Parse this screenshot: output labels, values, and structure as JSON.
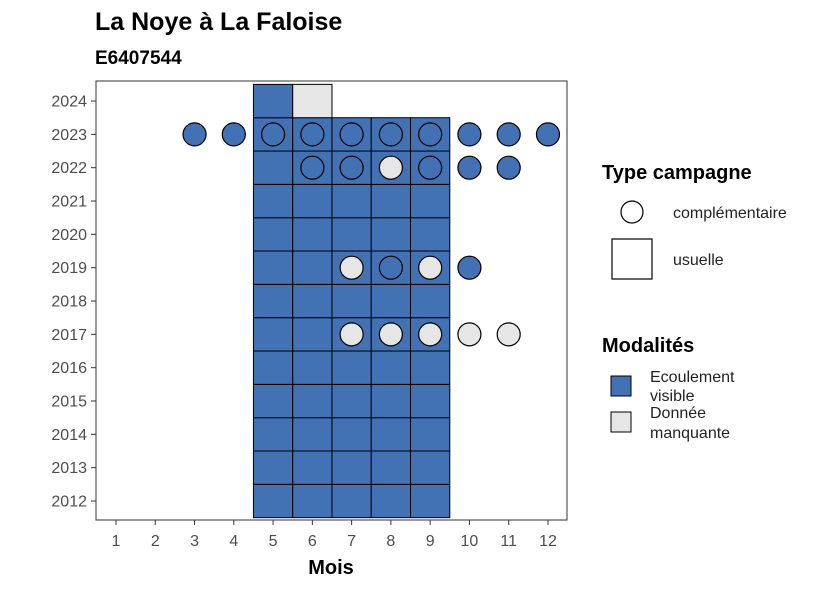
{
  "chart_data": {
    "type": "heatmap",
    "title": "La Noye à La Faloise",
    "subtitle": "E6407544",
    "xlabel": "Mois",
    "ylabel": "",
    "x_ticks": [
      1,
      2,
      3,
      4,
      5,
      6,
      7,
      8,
      9,
      10,
      11,
      12
    ],
    "y_ticks": [
      2012,
      2013,
      2014,
      2015,
      2016,
      2017,
      2018,
      2019,
      2020,
      2021,
      2022,
      2023,
      2024
    ],
    "colors": {
      "ecoulement": "#4372b4",
      "manquante": "#e6e6e6",
      "stroke": "#000000"
    },
    "usuelle": [
      {
        "year": 2012,
        "month": 5,
        "modalite": "ecoulement"
      },
      {
        "year": 2012,
        "month": 6,
        "modalite": "ecoulement"
      },
      {
        "year": 2012,
        "month": 7,
        "modalite": "ecoulement"
      },
      {
        "year": 2012,
        "month": 8,
        "modalite": "ecoulement"
      },
      {
        "year": 2012,
        "month": 9,
        "modalite": "ecoulement"
      },
      {
        "year": 2013,
        "month": 5,
        "modalite": "ecoulement"
      },
      {
        "year": 2013,
        "month": 6,
        "modalite": "ecoulement"
      },
      {
        "year": 2013,
        "month": 7,
        "modalite": "ecoulement"
      },
      {
        "year": 2013,
        "month": 8,
        "modalite": "ecoulement"
      },
      {
        "year": 2013,
        "month": 9,
        "modalite": "ecoulement"
      },
      {
        "year": 2014,
        "month": 5,
        "modalite": "ecoulement"
      },
      {
        "year": 2014,
        "month": 6,
        "modalite": "ecoulement"
      },
      {
        "year": 2014,
        "month": 7,
        "modalite": "ecoulement"
      },
      {
        "year": 2014,
        "month": 8,
        "modalite": "ecoulement"
      },
      {
        "year": 2014,
        "month": 9,
        "modalite": "ecoulement"
      },
      {
        "year": 2015,
        "month": 5,
        "modalite": "ecoulement"
      },
      {
        "year": 2015,
        "month": 6,
        "modalite": "ecoulement"
      },
      {
        "year": 2015,
        "month": 7,
        "modalite": "ecoulement"
      },
      {
        "year": 2015,
        "month": 8,
        "modalite": "ecoulement"
      },
      {
        "year": 2015,
        "month": 9,
        "modalite": "ecoulement"
      },
      {
        "year": 2016,
        "month": 5,
        "modalite": "ecoulement"
      },
      {
        "year": 2016,
        "month": 6,
        "modalite": "ecoulement"
      },
      {
        "year": 2016,
        "month": 7,
        "modalite": "ecoulement"
      },
      {
        "year": 2016,
        "month": 8,
        "modalite": "ecoulement"
      },
      {
        "year": 2016,
        "month": 9,
        "modalite": "ecoulement"
      },
      {
        "year": 2017,
        "month": 5,
        "modalite": "ecoulement"
      },
      {
        "year": 2017,
        "month": 6,
        "modalite": "ecoulement"
      },
      {
        "year": 2017,
        "month": 7,
        "modalite": "ecoulement"
      },
      {
        "year": 2017,
        "month": 8,
        "modalite": "ecoulement"
      },
      {
        "year": 2017,
        "month": 9,
        "modalite": "ecoulement"
      },
      {
        "year": 2018,
        "month": 5,
        "modalite": "ecoulement"
      },
      {
        "year": 2018,
        "month": 6,
        "modalite": "ecoulement"
      },
      {
        "year": 2018,
        "month": 7,
        "modalite": "ecoulement"
      },
      {
        "year": 2018,
        "month": 8,
        "modalite": "ecoulement"
      },
      {
        "year": 2018,
        "month": 9,
        "modalite": "ecoulement"
      },
      {
        "year": 2019,
        "month": 5,
        "modalite": "ecoulement"
      },
      {
        "year": 2019,
        "month": 6,
        "modalite": "ecoulement"
      },
      {
        "year": 2019,
        "month": 7,
        "modalite": "ecoulement"
      },
      {
        "year": 2019,
        "month": 8,
        "modalite": "ecoulement"
      },
      {
        "year": 2019,
        "month": 9,
        "modalite": "ecoulement"
      },
      {
        "year": 2020,
        "month": 5,
        "modalite": "ecoulement"
      },
      {
        "year": 2020,
        "month": 6,
        "modalite": "ecoulement"
      },
      {
        "year": 2020,
        "month": 7,
        "modalite": "ecoulement"
      },
      {
        "year": 2020,
        "month": 8,
        "modalite": "ecoulement"
      },
      {
        "year": 2020,
        "month": 9,
        "modalite": "ecoulement"
      },
      {
        "year": 2021,
        "month": 5,
        "modalite": "ecoulement"
      },
      {
        "year": 2021,
        "month": 6,
        "modalite": "ecoulement"
      },
      {
        "year": 2021,
        "month": 7,
        "modalite": "ecoulement"
      },
      {
        "year": 2021,
        "month": 8,
        "modalite": "ecoulement"
      },
      {
        "year": 2021,
        "month": 9,
        "modalite": "ecoulement"
      },
      {
        "year": 2022,
        "month": 5,
        "modalite": "ecoulement"
      },
      {
        "year": 2022,
        "month": 6,
        "modalite": "ecoulement"
      },
      {
        "year": 2022,
        "month": 7,
        "modalite": "ecoulement"
      },
      {
        "year": 2022,
        "month": 8,
        "modalite": "ecoulement"
      },
      {
        "year": 2022,
        "month": 9,
        "modalite": "ecoulement"
      },
      {
        "year": 2023,
        "month": 5,
        "modalite": "ecoulement"
      },
      {
        "year": 2023,
        "month": 6,
        "modalite": "ecoulement"
      },
      {
        "year": 2023,
        "month": 7,
        "modalite": "ecoulement"
      },
      {
        "year": 2023,
        "month": 8,
        "modalite": "ecoulement"
      },
      {
        "year": 2023,
        "month": 9,
        "modalite": "ecoulement"
      },
      {
        "year": 2024,
        "month": 5,
        "modalite": "ecoulement"
      },
      {
        "year": 2024,
        "month": 6,
        "modalite": "manquante"
      }
    ],
    "complementaire": [
      {
        "year": 2017,
        "month": 7,
        "modalite": "manquante"
      },
      {
        "year": 2017,
        "month": 8,
        "modalite": "manquante"
      },
      {
        "year": 2017,
        "month": 9,
        "modalite": "manquante"
      },
      {
        "year": 2017,
        "month": 10,
        "modalite": "manquante"
      },
      {
        "year": 2017,
        "month": 11,
        "modalite": "manquante"
      },
      {
        "year": 2019,
        "month": 7,
        "modalite": "manquante"
      },
      {
        "year": 2019,
        "month": 8,
        "modalite": "ecoulement"
      },
      {
        "year": 2019,
        "month": 9,
        "modalite": "manquante"
      },
      {
        "year": 2019,
        "month": 10,
        "modalite": "ecoulement"
      },
      {
        "year": 2022,
        "month": 6,
        "modalite": "ecoulement"
      },
      {
        "year": 2022,
        "month": 7,
        "modalite": "ecoulement"
      },
      {
        "year": 2022,
        "month": 8,
        "modalite": "manquante"
      },
      {
        "year": 2022,
        "month": 9,
        "modalite": "ecoulement"
      },
      {
        "year": 2022,
        "month": 10,
        "modalite": "ecoulement"
      },
      {
        "year": 2022,
        "month": 11,
        "modalite": "ecoulement"
      },
      {
        "year": 2023,
        "month": 3,
        "modalite": "ecoulement"
      },
      {
        "year": 2023,
        "month": 4,
        "modalite": "ecoulement"
      },
      {
        "year": 2023,
        "month": 5,
        "modalite": "ecoulement"
      },
      {
        "year": 2023,
        "month": 6,
        "modalite": "ecoulement"
      },
      {
        "year": 2023,
        "month": 7,
        "modalite": "ecoulement"
      },
      {
        "year": 2023,
        "month": 8,
        "modalite": "ecoulement"
      },
      {
        "year": 2023,
        "month": 9,
        "modalite": "ecoulement"
      },
      {
        "year": 2023,
        "month": 10,
        "modalite": "ecoulement"
      },
      {
        "year": 2023,
        "month": 11,
        "modalite": "ecoulement"
      },
      {
        "year": 2023,
        "month": 12,
        "modalite": "ecoulement"
      }
    ],
    "legend_type": {
      "title": "Type campagne",
      "items": [
        {
          "label": "complémentaire",
          "shape": "circle"
        },
        {
          "label": "usuelle",
          "shape": "square"
        }
      ]
    },
    "legend_modalites": {
      "title": "Modalités",
      "items": [
        {
          "key": "ecoulement",
          "lines": [
            "Ecoulement",
            "visible"
          ]
        },
        {
          "key": "manquante",
          "lines": [
            "Donnée",
            "manquante"
          ]
        }
      ]
    }
  }
}
